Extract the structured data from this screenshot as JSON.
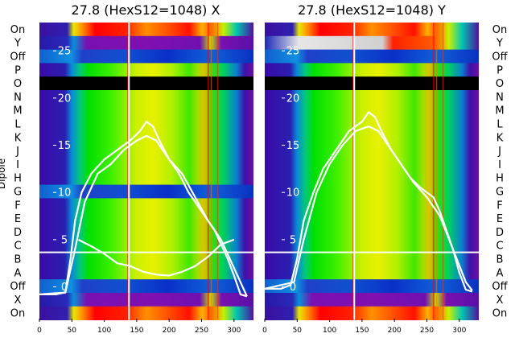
{
  "chart_data": [
    {
      "type": "heatmap",
      "title": "27.8 (HexS12=1048) X",
      "ylabel": "Dipole",
      "xlim": [
        0,
        330
      ],
      "xticks": [
        0,
        50,
        100,
        150,
        200,
        250,
        300
      ],
      "overlay_ylim": [
        -3.5,
        28
      ],
      "overlay_yticks": [
        0,
        5,
        10,
        15,
        20,
        25
      ],
      "rows": [
        "On",
        "Y",
        "Off",
        "P",
        "O",
        "N",
        "M",
        "L",
        "K",
        "J",
        "I",
        "H",
        "G",
        "F",
        "E",
        "D",
        "C",
        "B",
        "A",
        "Off",
        "X",
        "On"
      ],
      "row_profiles": [
        "hot",
        "purple",
        "blue",
        "green",
        "black",
        "green",
        "green",
        "green",
        "green",
        "green",
        "green",
        "green",
        "blue",
        "green",
        "green",
        "green",
        "green",
        "green",
        "green",
        "blue",
        "purple",
        "hot"
      ],
      "separator_after_row": "C",
      "series": [
        {
          "name": "",
          "x": [
            0,
            25,
            40,
            48,
            55,
            65,
            80,
            100,
            120,
            140,
            155,
            165,
            175,
            185,
            200,
            215,
            230,
            240,
            250,
            270,
            290,
            300,
            310,
            320
          ],
          "y": [
            -0.8,
            -0.8,
            -0.6,
            3,
            7,
            10,
            12,
            13.5,
            14.5,
            15.5,
            16.5,
            17.5,
            17,
            15.5,
            13.5,
            12,
            10,
            9,
            8,
            6,
            3,
            1.2,
            -0.8,
            -1
          ]
        },
        {
          "name": "",
          "x": [
            0,
            40,
            55,
            70,
            90,
            110,
            130,
            150,
            165,
            180,
            200,
            220,
            240,
            260,
            280,
            300,
            320
          ],
          "y": [
            -0.8,
            -0.6,
            4,
            9,
            12,
            13,
            14.5,
            15.5,
            16,
            15.5,
            13.5,
            12,
            9.5,
            7,
            5,
            2,
            -1
          ]
        },
        {
          "name": "",
          "x": [
            60,
            80,
            100,
            120,
            140,
            160,
            180,
            200,
            220,
            240,
            260,
            280,
            300
          ],
          "y": [
            5,
            4.3,
            3.5,
            2.5,
            2.2,
            1.6,
            1.3,
            1.2,
            1.6,
            2.2,
            3.2,
            4.5,
            5
          ]
        }
      ]
    },
    {
      "type": "heatmap",
      "title": "27.8 (HexS12=1048) Y",
      "ylabel": "",
      "xlim": [
        0,
        330
      ],
      "xticks": [
        0,
        50,
        100,
        150,
        200,
        250,
        300
      ],
      "overlay_ylim": [
        -3.5,
        28
      ],
      "overlay_yticks": [
        0,
        5,
        10,
        15,
        20,
        25
      ],
      "rows": [
        "On",
        "Y",
        "Off",
        "P",
        "O",
        "N",
        "M",
        "L",
        "K",
        "J",
        "I",
        "H",
        "G",
        "F",
        "E",
        "D",
        "C",
        "B",
        "A",
        "Off",
        "X",
        "On"
      ],
      "row_profiles": [
        "hot",
        "hot",
        "blue",
        "green",
        "black",
        "green",
        "green",
        "green",
        "green",
        "green",
        "green",
        "green",
        "green",
        "green",
        "green",
        "green",
        "green",
        "green",
        "green",
        "blue",
        "purple",
        "hot"
      ],
      "separator_after_row": "C",
      "series": [
        {
          "name": "",
          "x": [
            0,
            25,
            40,
            50,
            60,
            75,
            90,
            110,
            130,
            150,
            160,
            170,
            180,
            195,
            210,
            225,
            240,
            250,
            260,
            270,
            280,
            290,
            300,
            310,
            320
          ],
          "y": [
            -0.2,
            -0.2,
            0.2,
            3,
            7,
            10,
            12.5,
            14.5,
            16.5,
            17.5,
            18.5,
            18,
            16.5,
            14.5,
            13,
            11.5,
            10.5,
            10,
            9.5,
            8,
            6,
            4,
            1.5,
            -0.3,
            -0.5
          ]
        },
        {
          "name": "",
          "x": [
            0,
            45,
            60,
            80,
            100,
            120,
            140,
            160,
            175,
            190,
            210,
            230,
            250,
            270,
            290,
            310,
            320
          ],
          "y": [
            -0.2,
            0.5,
            5,
            10,
            13,
            15,
            16.5,
            17,
            16.5,
            15,
            13,
            11,
            9.5,
            7.5,
            4,
            0.5,
            -0.4
          ]
        }
      ]
    }
  ]
}
